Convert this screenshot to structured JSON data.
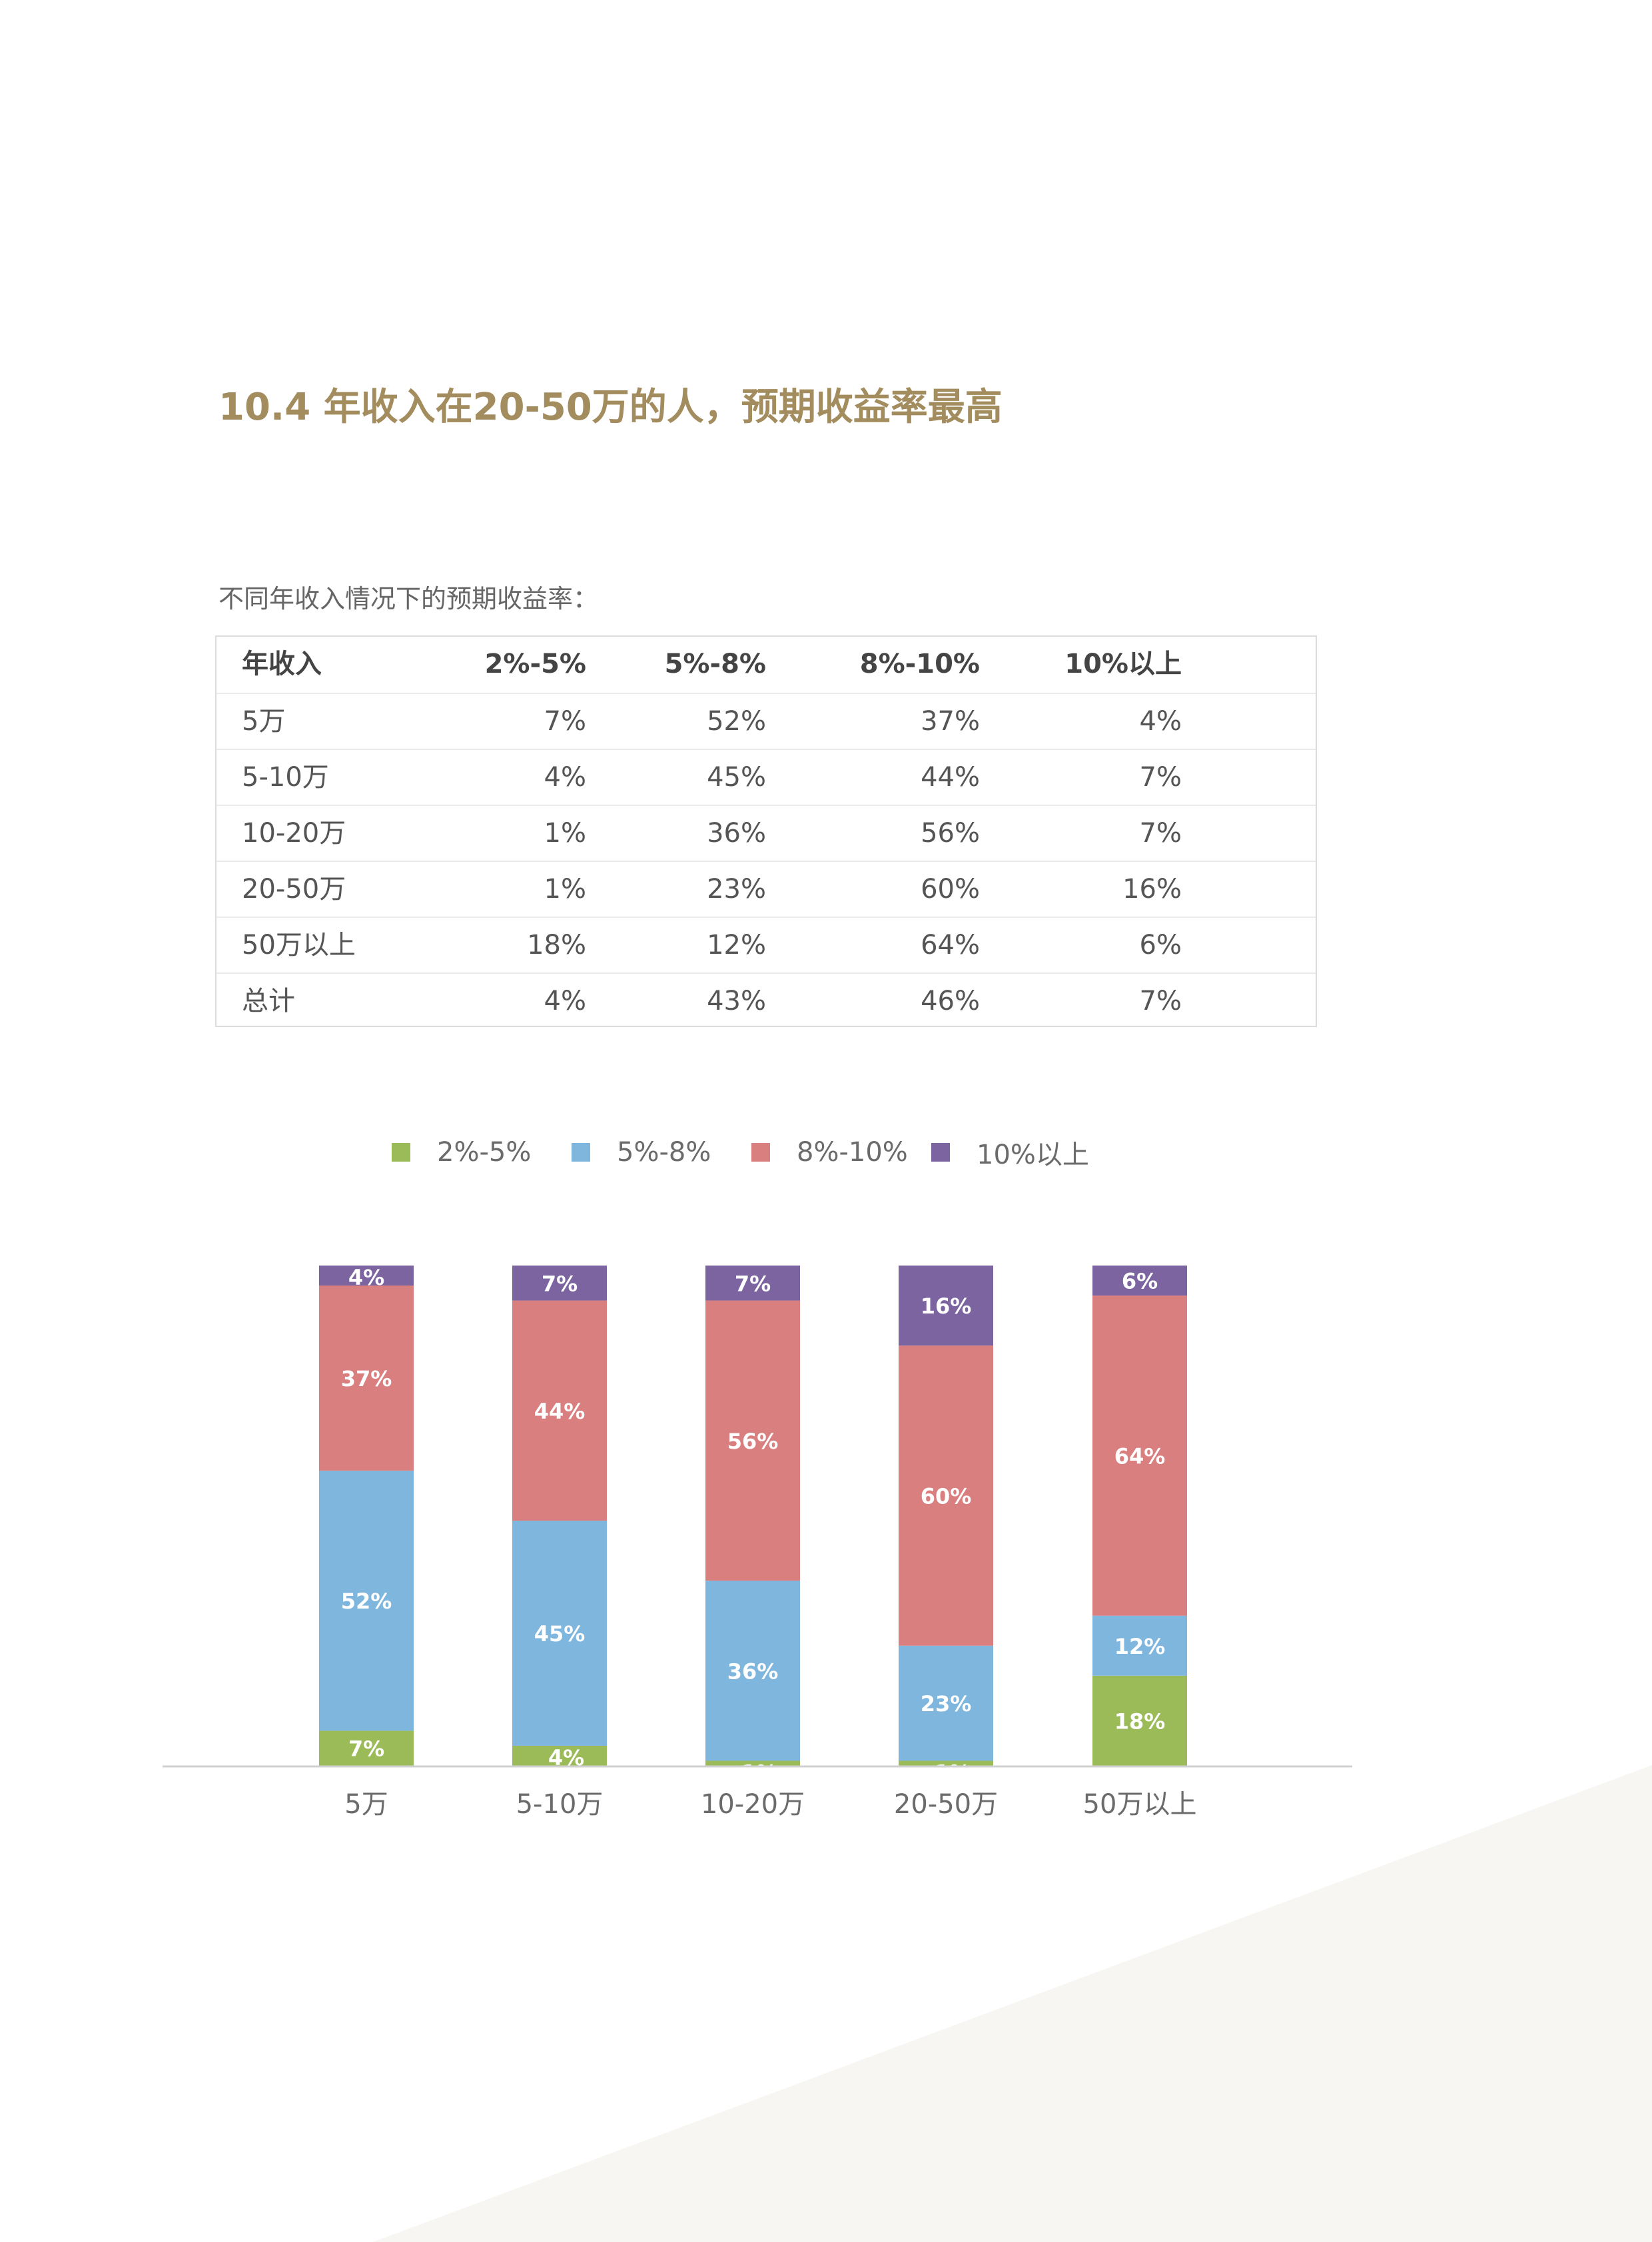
{
  "title": "10.4 年收入在20-50万的人，预期收益率最高",
  "subtitle": "不同年收入情况下的预期收益率：",
  "table": {
    "headers": [
      "年收入",
      "2%-5%",
      "5%-8%",
      "8%-10%",
      "10%以上"
    ],
    "rows": [
      [
        "5万",
        "7%",
        "52%",
        "37%",
        "4%"
      ],
      [
        "5-10万",
        "4%",
        "45%",
        "44%",
        "7%"
      ],
      [
        "10-20万",
        "1%",
        "36%",
        "56%",
        "7%"
      ],
      [
        "20-50万",
        "1%",
        "23%",
        "60%",
        "16%"
      ],
      [
        "50万以上",
        "18%",
        "12%",
        "64%",
        "6%"
      ],
      [
        "总计",
        "4%",
        "43%",
        "46%",
        "7%"
      ]
    ]
  },
  "colors": {
    "title": "#a38c5e",
    "series_2_5": "#9bbb59",
    "series_5_8": "#7fb6de",
    "series_8_10": "#d97f7f",
    "series_10_plus": "#7b64a0",
    "background_shape": "#f7f6f2"
  },
  "chart_data": {
    "type": "bar",
    "stacked": true,
    "categories": [
      "5万",
      "5-10万",
      "10-20万",
      "20-50万",
      "50万以上"
    ],
    "series": [
      {
        "name": "2%-5%",
        "values": [
          7,
          4,
          1,
          1,
          18
        ]
      },
      {
        "name": "5%-8%",
        "values": [
          52,
          45,
          36,
          23,
          12
        ]
      },
      {
        "name": "8%-10%",
        "values": [
          37,
          44,
          56,
          60,
          64
        ]
      },
      {
        "name": "10%以上",
        "values": [
          4,
          7,
          7,
          16,
          6
        ]
      }
    ],
    "data_labels": [
      [
        "7%",
        "4%",
        "1%",
        "1%",
        "18%"
      ],
      [
        "52%",
        "45%",
        "36%",
        "23%",
        "12%"
      ],
      [
        "37%",
        "44%",
        "56%",
        "60%",
        "64%"
      ],
      [
        "4%",
        "7%",
        "7%",
        "16%",
        "6%"
      ]
    ],
    "ylim": [
      0,
      100
    ],
    "legend_position": "top",
    "grid": false,
    "title": "",
    "xlabel": "",
    "ylabel": ""
  }
}
